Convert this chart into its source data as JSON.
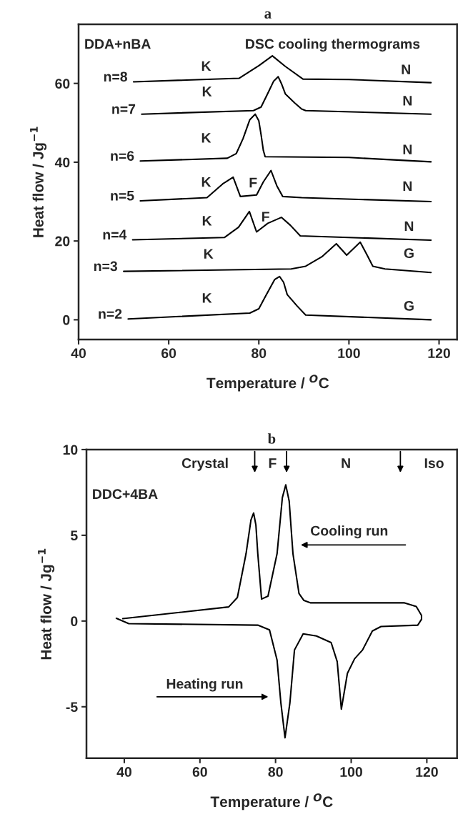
{
  "chart_data": [
    {
      "type": "line",
      "title": "a",
      "xlabel": "Temperature / $^{O}$C",
      "ylabel": "Heat flow / Jg$^{−1}$",
      "xlim": [
        40,
        124
      ],
      "ylim": [
        -5,
        75
      ],
      "xticks": [
        40,
        60,
        80,
        100,
        120
      ],
      "yticks": [
        0,
        20,
        40,
        60
      ],
      "legend": false,
      "grid": false,
      "series": [
        {
          "name": "n=8",
          "color": "#000000",
          "x": [
            52.2,
            75.6,
            80.0,
            83.0,
            85.9,
            89.8,
            100,
            118.2
          ],
          "values": [
            60.4,
            61.3,
            64.5,
            67.0,
            64.3,
            61.1,
            61.0,
            60.2
          ]
        },
        {
          "name": "n=7",
          "color": "#000000",
          "x": [
            54.0,
            78.8,
            80.5,
            82.0,
            83.3,
            84.3,
            85.0,
            85.9,
            88.0,
            89.5,
            90.4,
            118.2
          ],
          "values": [
            52.2,
            53.1,
            54.0,
            57.5,
            60.6,
            61.7,
            60.0,
            57.3,
            55.0,
            53.5,
            53.1,
            52.2
          ]
        },
        {
          "name": "n=6",
          "color": "#000000",
          "x": [
            53.7,
            73.0,
            75.0,
            76.5,
            78.0,
            79.2,
            80.0,
            80.5,
            81.0,
            81.4,
            100,
            118.2
          ],
          "values": [
            40.3,
            41.0,
            42.2,
            46.0,
            50.8,
            52.2,
            50.5,
            47.0,
            43.0,
            41.4,
            41.2,
            40.1
          ]
        },
        {
          "name": "n=5",
          "color": "#000000",
          "x": [
            53.7,
            68.5,
            72.0,
            74.3,
            75.9,
            79.5,
            81.0,
            82.7,
            84.0,
            85.3,
            89.5,
            118.2
          ],
          "values": [
            30.2,
            31.0,
            34.5,
            36.2,
            31.3,
            31.7,
            35.0,
            37.9,
            34.0,
            31.3,
            31.0,
            30.0
          ]
        },
        {
          "name": "n=4",
          "color": "#000000",
          "x": [
            52.0,
            72.4,
            75.5,
            77.9,
            79.5,
            82.0,
            85.0,
            87.0,
            89.2,
            118.2
          ],
          "values": [
            20.3,
            20.9,
            23.5,
            27.5,
            22.3,
            24.5,
            26.0,
            24.0,
            21.3,
            20.2
          ]
        },
        {
          "name": "n=3",
          "color": "#000000",
          "x": [
            50.0,
            87.2,
            90.4,
            94.0,
            97.2,
            99.5,
            102.5,
            104.0,
            105.3,
            108.0,
            118.2
          ],
          "values": [
            12.3,
            12.9,
            13.6,
            16.0,
            19.3,
            16.4,
            19.7,
            16.5,
            13.6,
            12.9,
            12.0
          ]
        },
        {
          "name": "n=2",
          "color": "#000000",
          "x": [
            51.0,
            78.0,
            80.0,
            81.5,
            83.5,
            84.6,
            85.5,
            86.3,
            88.5,
            90.4,
            118.2
          ],
          "values": [
            0.2,
            1.7,
            2.8,
            6.0,
            10.2,
            11.0,
            9.5,
            6.4,
            3.5,
            1.2,
            0.0
          ]
        }
      ],
      "annotations": [
        "DDA+nBA",
        "DSC cooling thermograms",
        "K",
        "N",
        "K",
        "N",
        "K",
        "N",
        "K",
        "F",
        "N",
        "K",
        "F",
        "N",
        "K",
        "G",
        "K",
        "G"
      ]
    },
    {
      "type": "line",
      "title": "b",
      "xlabel": "Temperature / $^{O}$C",
      "ylabel": "Heat flow / Jg$^{−1}$",
      "xlim": [
        30,
        128
      ],
      "ylim": [
        -8,
        10
      ],
      "xticks": [
        40,
        60,
        80,
        100,
        120
      ],
      "yticks": [
        -5,
        0,
        5,
        10
      ],
      "legend": false,
      "grid": false,
      "series": [
        {
          "color": "#000000",
          "x": [
            39.6,
            67.6,
            69.9,
            72.2,
            73.5,
            74.2,
            74.8,
            75.3,
            76.3,
            78.0,
            80.4,
            81.8,
            82.7,
            83.6,
            84.6,
            86.2,
            87.5,
            89.3,
            114.1,
            117.2,
            118.6,
            118.6
          ],
          "values": [
            0.14,
            0.82,
            1.37,
            3.93,
            5.9,
            6.3,
            5.6,
            3.93,
            1.28,
            1.45,
            3.93,
            7.2,
            7.94,
            7.0,
            3.93,
            1.6,
            1.2,
            1.06,
            1.06,
            0.85,
            0.33,
            0.1
          ]
        },
        {
          "color": "#000000",
          "x": [
            37.9,
            41.2,
            75.3,
            78.4,
            80.4,
            81.4,
            82.5,
            83.8,
            85.0,
            87.3,
            90.8,
            94.7,
            96.3,
            97.4,
            99.0,
            100.9,
            103.0,
            105.6,
            107.9,
            117.6,
            118.6
          ],
          "values": [
            0.16,
            -0.15,
            -0.24,
            -0.52,
            -2.28,
            -4.76,
            -6.81,
            -4.76,
            -1.69,
            -0.75,
            -0.87,
            -1.26,
            -2.37,
            -5.14,
            -3.05,
            -2.2,
            -1.69,
            -0.58,
            -0.32,
            -0.24,
            0.1
          ]
        }
      ],
      "annotations": [
        "DDC+4BA",
        "Crystal",
        "F",
        "N",
        "Iso",
        "Cooling run",
        "Heating run"
      ]
    }
  ]
}
